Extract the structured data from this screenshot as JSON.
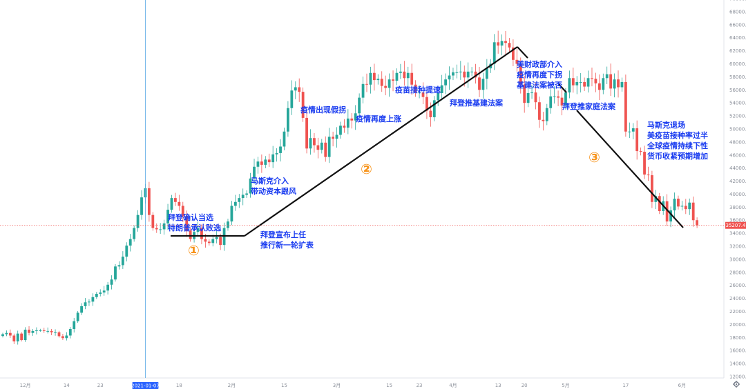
{
  "chart_data": {
    "type": "candlestick",
    "ylim": [
      12000,
      70000
    ],
    "y_ticks": [
      "70000.0",
      "68000.0",
      "66000.0",
      "64000.0",
      "62000.0",
      "60000.0",
      "58000.0",
      "56000.0",
      "54000.0",
      "52000.0",
      "50000.0",
      "48000.0",
      "46000.0",
      "44000.0",
      "42000.0",
      "40000.0",
      "38000.0",
      "36000.0",
      "34000.0",
      "32000.0",
      "30000.0",
      "28000.0",
      "26000.0",
      "24000.0",
      "22000.0",
      "20000.0",
      "18000.0",
      "16000.0",
      "14000.0",
      "12000.0"
    ],
    "x_ticks": [
      {
        "label": "12月",
        "i": 6
      },
      {
        "label": "14",
        "i": 17
      },
      {
        "label": "23",
        "i": 26
      },
      {
        "label": "18",
        "i": 47
      },
      {
        "label": "2月",
        "i": 61
      },
      {
        "label": "15",
        "i": 75
      },
      {
        "label": "3月",
        "i": 89
      },
      {
        "label": "15",
        "i": 103
      },
      {
        "label": "23",
        "i": 111
      },
      {
        "label": "4月",
        "i": 120
      },
      {
        "label": "13",
        "i": 132
      },
      {
        "label": "20",
        "i": 139
      },
      {
        "label": "5月",
        "i": 150
      },
      {
        "label": "17",
        "i": 166
      },
      {
        "label": "6月",
        "i": 181
      }
    ],
    "crosshair_date": "2021-01-07",
    "crosshair_index": 38,
    "last_price": "35207.4",
    "colors": {
      "up": "#26a69a",
      "down": "#ef5350",
      "trend_line": "#111111",
      "text": "#1a3cf0",
      "circle": "#f7931a",
      "crosshair": "#5aa9e6"
    },
    "closes": [
      18500,
      18700,
      18300,
      17400,
      18600,
      17600,
      19200,
      18700,
      19000,
      19100,
      19100,
      19000,
      19000,
      18800,
      18800,
      18200,
      17900,
      18300,
      19300,
      20500,
      21800,
      22800,
      23400,
      23500,
      24200,
      24700,
      24900,
      25200,
      26100,
      26900,
      28900,
      29100,
      30400,
      32100,
      33100,
      34800,
      36800,
      39500,
      40900,
      36800,
      34800,
      34600,
      34600,
      35500,
      37600,
      39400,
      38800,
      38200,
      36600,
      34400,
      33100,
      34200,
      34800,
      33100,
      32700,
      32500,
      33100,
      33400,
      32200,
      34800,
      35800,
      38200,
      38800,
      39400,
      39900,
      40100,
      42400,
      44200,
      45000,
      44500,
      45300,
      44900,
      46100,
      46300,
      47300,
      49600,
      53200,
      55900,
      56400,
      55700,
      51700,
      47000,
      48600,
      47500,
      46800,
      47900,
      45700,
      48800,
      48500,
      49100,
      50500,
      50200,
      51600,
      51300,
      52400,
      54800,
      56900,
      56800,
      58600,
      57500,
      57700,
      56600,
      56300,
      57600,
      57400,
      58600,
      58800,
      57800,
      58600,
      56800,
      55600,
      55600,
      54900,
      52800,
      51800,
      54400,
      55500,
      56700,
      57600,
      58200,
      58700,
      58700,
      58800,
      57900,
      58800,
      58800,
      57900,
      56000,
      57700,
      59300,
      60000,
      63300,
      62800,
      63500,
      63200,
      62500,
      60600,
      60000,
      56800,
      54000,
      55500,
      55600,
      54100,
      51400,
      51200,
      53200,
      55000,
      55000,
      54800,
      53600,
      55600,
      57800,
      56700,
      57200,
      57200,
      56500,
      57800,
      57700,
      57000,
      56000,
      57800,
      58400,
      56200,
      57600,
      56400,
      57200,
      49600,
      49600,
      50100,
      46600,
      46500,
      43000,
      42900,
      38800,
      39700,
      37400,
      38900,
      35800,
      37500,
      39300,
      38100,
      38200,
      37700,
      38700,
      36000,
      35207
    ]
  },
  "annotations": {
    "a1_line1": "拜登确认当选",
    "a1_line2": "特朗普承认败选",
    "a2_line1": "马斯克介入",
    "a2_line2": "带动资本跟风",
    "a3_line1": "拜登宣布上任",
    "a3_line2": "推行新一轮扩表",
    "a4": "疫情出现假拐",
    "a5": "疫情再度上涨",
    "a6": "疫苗接种提速",
    "a7": "拜登推基建法案",
    "a8_line1": "美财政部介入",
    "a8_line2": "疫情再度下拐",
    "a8_line3": "基建法案被否",
    "a9": "拜登推家庭法案",
    "a10_line1": "马斯克退场",
    "a10_line2": "美疫苗接种率过半",
    "a10_line3": "全球疫情持续下性",
    "a10_line4": "货币收紧预期增加",
    "circle1": "①",
    "circle2": "②",
    "circle3": "③"
  },
  "ui": {
    "settings_icon": "gear-icon"
  }
}
